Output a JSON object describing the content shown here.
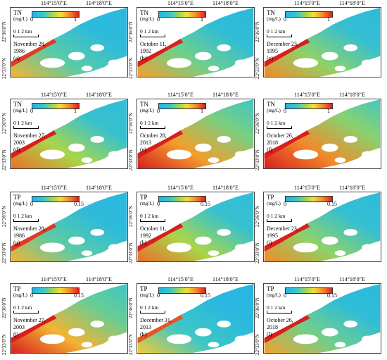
{
  "lon_labels": [
    "114°15′0″E",
    "114°18′0″E"
  ],
  "lat_labels": [
    "22°36′0″N",
    "22°33′0″N"
  ],
  "scale_label": "0   1   2 km",
  "unit": "(mg/L)",
  "panels": [
    {
      "var": "TN",
      "min": "0",
      "max": "1",
      "date": [
        "November 28,",
        "1986"
      ],
      "tag": "(a)",
      "level": 0.15
    },
    {
      "var": "TN",
      "min": "0",
      "max": "1",
      "date": [
        "October 11,",
        "1992"
      ],
      "tag": "(b)",
      "level": 0.2
    },
    {
      "var": "TN",
      "min": "0",
      "max": "1",
      "date": [
        "December 23,",
        "1995"
      ],
      "tag": "(c)",
      "level": 0.25
    },
    {
      "var": "TN",
      "min": "0",
      "max": "1",
      "date": [
        "November 27,",
        "2003"
      ],
      "tag": "(d)",
      "level": 0.3
    },
    {
      "var": "TN",
      "min": "0",
      "max": "1",
      "date": [
        "October 28,",
        "2013"
      ],
      "tag": "(e)",
      "level": 0.6
    },
    {
      "var": "TN",
      "min": "0",
      "max": "1",
      "date": [
        "October 26,",
        "2018"
      ],
      "tag": "(f)",
      "level": 0.65
    },
    {
      "var": "TP",
      "min": "0",
      "max": "0.15",
      "date": [
        "November 28,",
        "1986"
      ],
      "tag": "(g)",
      "level": 0.15
    },
    {
      "var": "TP",
      "min": "0",
      "max": "0.15",
      "date": [
        "October 11,",
        "1992"
      ],
      "tag": "(h)",
      "level": 0.3
    },
    {
      "var": "TP",
      "min": "0",
      "max": "0.15",
      "date": [
        "December 23,",
        "1995"
      ],
      "tag": "(i)",
      "level": 0.25
    },
    {
      "var": "TP",
      "min": "0",
      "max": "0.15",
      "date": [
        "November 27,",
        "2003"
      ],
      "tag": "(j)",
      "level": 0.55
    },
    {
      "var": "TP",
      "min": "0",
      "max": "0.15",
      "date": [
        "December 31,",
        "2013"
      ],
      "tag": "(k)",
      "level": 0.1
    },
    {
      "var": "TP",
      "min": "0",
      "max": "0.15",
      "date": [
        "October 26,",
        "2018"
      ],
      "tag": "(l)",
      "level": 0.2
    }
  ],
  "colors": {
    "low": "#23b3e8",
    "mid": "#a8d64a",
    "high": "#d81f1f",
    "land": "#ffffff"
  }
}
